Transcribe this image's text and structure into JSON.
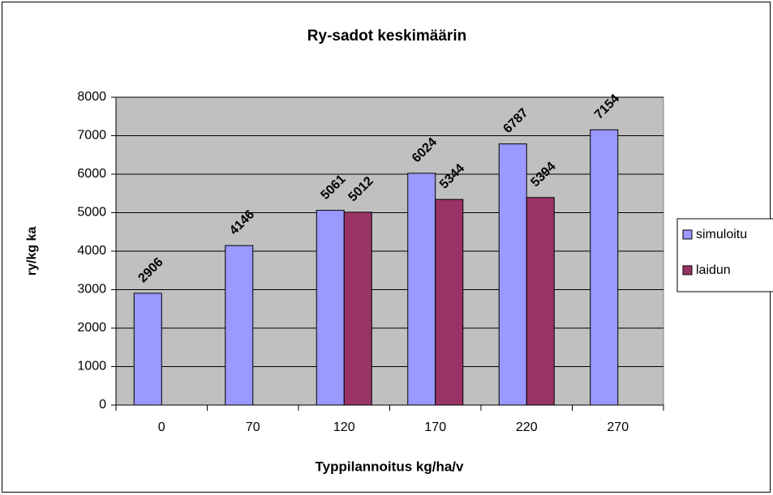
{
  "chart_data": {
    "type": "bar",
    "title": "Ry-sadot keskimäärin",
    "x_label": "Typpilannoitus kg/ha/v",
    "y_label": "ry/kg ka",
    "categories": [
      "0",
      "70",
      "120",
      "170",
      "220",
      "270"
    ],
    "series": [
      {
        "name": "simuloitu",
        "color": "#9999ff",
        "values": [
          2906,
          4146,
          5061,
          6024,
          6787,
          7154
        ]
      },
      {
        "name": "laidun",
        "color": "#993366",
        "values": [
          null,
          null,
          5012,
          5344,
          5394,
          null
        ]
      }
    ],
    "ylim": [
      0,
      8000
    ],
    "yticks": [
      0,
      1000,
      2000,
      3000,
      4000,
      5000,
      6000,
      7000,
      8000
    ],
    "grid": true,
    "legend": "right"
  }
}
